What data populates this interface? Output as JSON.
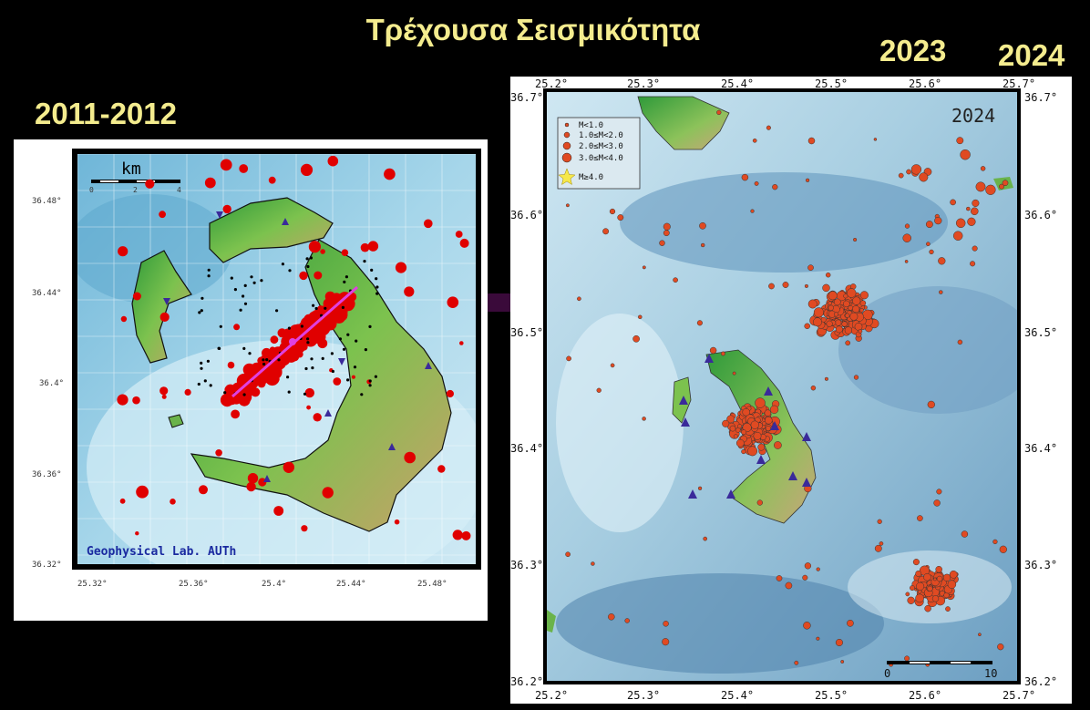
{
  "title": "Τρέχουσα Σεισμικότητα",
  "period_labels": {
    "left": "2011-2012",
    "right_a": "2023",
    "right_b": "2024"
  },
  "left_map": {
    "scalebar": {
      "label": "km",
      "ticks": [
        "0",
        "2",
        "4"
      ]
    },
    "credit": "Geophysical Lab. AUTh",
    "lon_ticks": [
      "25.32°",
      "25.36°",
      "25.4°",
      "25.44°",
      "25.48°"
    ],
    "lat_ticks": [
      "36.48°",
      "36.44°",
      "36.4°",
      "36.36°",
      "36.32°"
    ],
    "colors": {
      "quake": "#e00000",
      "microquake": "#000000",
      "fault_line": "#e040e0",
      "station": "#3a2a9a"
    }
  },
  "right_map": {
    "year_label": "2024",
    "lon_ticks": [
      "25.2°",
      "25.3°",
      "25.4°",
      "25.5°",
      "25.6°",
      "25.7°"
    ],
    "lat_ticks": [
      "36.7°",
      "36.6°",
      "36.5°",
      "36.4°",
      "36.3°",
      "36.2°"
    ],
    "scalebar": {
      "ticks": [
        "0",
        "10"
      ]
    },
    "legend": [
      {
        "label": "M<1.0"
      },
      {
        "label": "1.0≤M<2.0"
      },
      {
        "label": "2.0≤M<3.0"
      },
      {
        "label": "3.0≤M<4.0"
      },
      {
        "label": "M≥4.0"
      }
    ],
    "colors": {
      "quake": "#e04a22",
      "star": "#f6e84a",
      "station": "#3a2a9a"
    }
  }
}
